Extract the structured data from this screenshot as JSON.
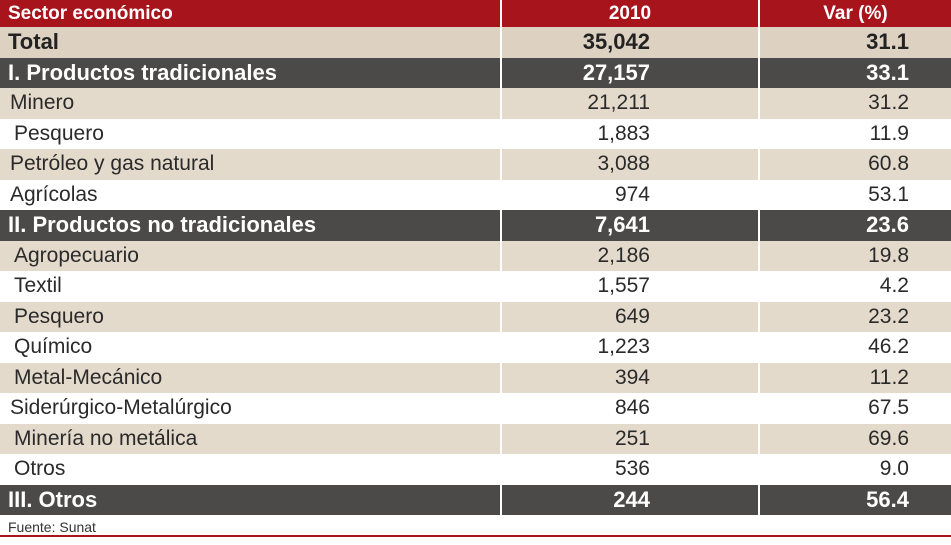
{
  "header": {
    "col1": "Sector económico",
    "col2": "2010",
    "col3": "Var (%)"
  },
  "rows": [
    {
      "label": "Total",
      "value": "35,042",
      "var": "31.1"
    },
    {
      "label": "I. Productos tradicionales",
      "value": "27,157",
      "var": "33.1"
    },
    {
      "label": "Minero",
      "value": "21,211",
      "var": "31.2"
    },
    {
      "label": "Pesquero",
      "value": "1,883",
      "var": "11.9"
    },
    {
      "label": "Petróleo y gas natural",
      "value": "3,088",
      "var": "60.8"
    },
    {
      "label": "Agrícolas",
      "value": "974",
      "var": "53.1"
    },
    {
      "label": "II. Productos no tradicionales",
      "value": "7,641",
      "var": "23.6"
    },
    {
      "label": "Agropecuario",
      "value": "2,186",
      "var": "19.8"
    },
    {
      "label": "Textil",
      "value": "1,557",
      "var": "4.2"
    },
    {
      "label": "Pesquero",
      "value": "649",
      "var": "23.2"
    },
    {
      "label": "Químico",
      "value": "1,223",
      "var": "46.2"
    },
    {
      "label": "Metal-Mecánico",
      "value": "394",
      "var": "11.2"
    },
    {
      "label": "Siderúrgico-Metalúrgico",
      "value": "846",
      "var": "67.5"
    },
    {
      "label": "Minería no metálica",
      "value": "251",
      "var": "69.6"
    },
    {
      "label": "Otros",
      "value": "536",
      "var": "9.0"
    },
    {
      "label": "III. Otros",
      "value": "244",
      "var": "56.4"
    }
  ],
  "source": "Fuente: Sunat",
  "colors": {
    "header_bg": "#a8141c",
    "section_bg": "#4b4a48",
    "shade_bg": "#e4dacc"
  }
}
